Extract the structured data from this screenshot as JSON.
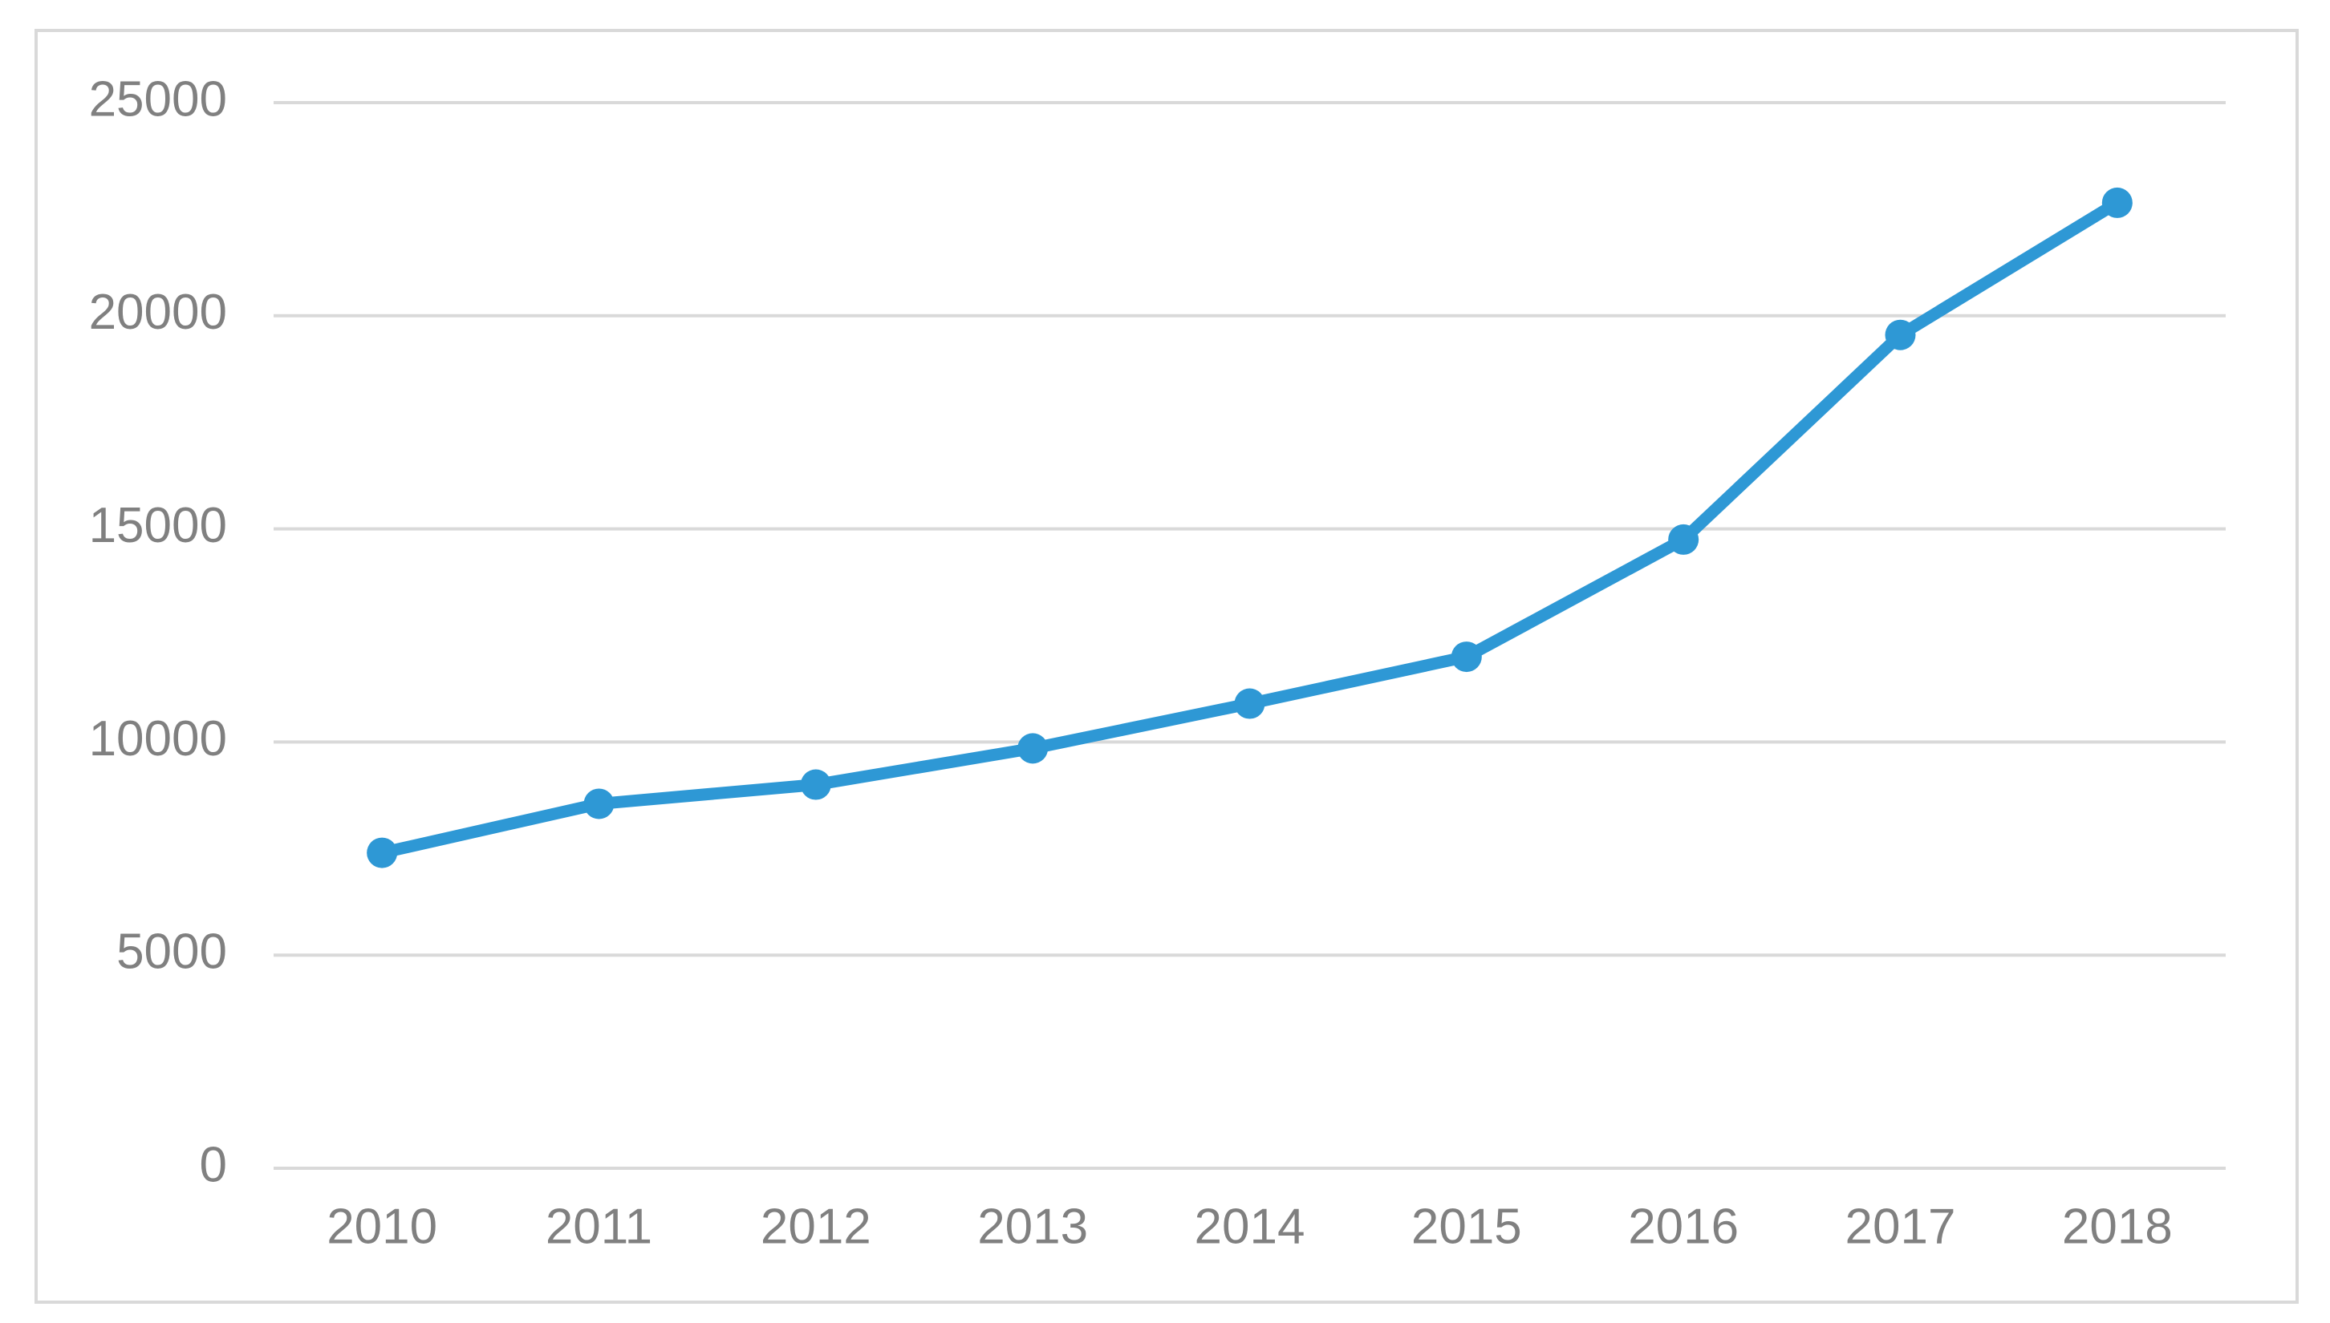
{
  "chart_data": {
    "type": "line",
    "categories": [
      "2010",
      "2011",
      "2012",
      "2013",
      "2014",
      "2015",
      "2016",
      "2017",
      "2018"
    ],
    "values": [
      7400,
      8550,
      9000,
      9850,
      10900,
      12000,
      14750,
      19550,
      22650
    ],
    "color": "#2e98d5",
    "ylim": [
      0,
      25000
    ],
    "yticks": [
      0,
      5000,
      10000,
      15000,
      20000,
      25000
    ],
    "grid": true
  }
}
